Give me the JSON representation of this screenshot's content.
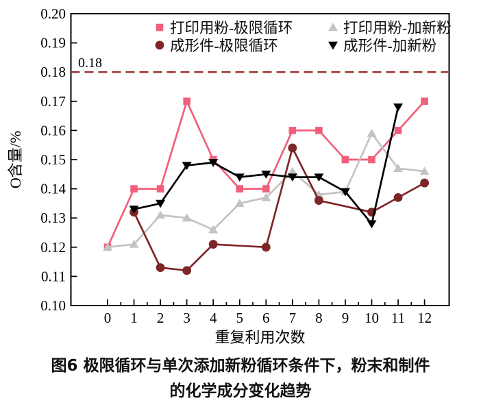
{
  "figure": {
    "caption_line1": "图6  极限循环与单次添加新粉循环条件下，粉末和制件",
    "caption_line2": "的化学成分变化趋势"
  },
  "chart_data": {
    "type": "line",
    "title": "",
    "xlabel": "重复利用次数",
    "ylabel": "O含量/%",
    "xlim": [
      0,
      12
    ],
    "ylim": [
      0.1,
      0.2
    ],
    "x_ticks": [
      "0",
      "1",
      "2",
      "3",
      "4",
      "5",
      "6",
      "7",
      "8",
      "9",
      "10",
      "11",
      "12"
    ],
    "y_ticks": [
      "0.10",
      "0.11",
      "0.12",
      "0.13",
      "0.14",
      "0.15",
      "0.16",
      "0.17",
      "0.18",
      "0.19",
      "0.20"
    ],
    "x_minor_tick_step": 0.5,
    "grid": false,
    "legend_position": "top-center",
    "axis_color": "#000000",
    "threshold": {
      "value": 0.18,
      "label": "0.18",
      "color": "#9a3335",
      "style": "dashed"
    },
    "series": [
      {
        "id": "print-powder-limit-cycle",
        "name": "打印用粉-极限循环",
        "marker": "square",
        "color": "#f15f7b",
        "x": [
          0,
          1,
          2,
          3,
          4,
          5,
          6,
          7,
          8,
          9,
          10,
          11,
          12
        ],
        "y": [
          0.12,
          0.14,
          0.14,
          0.17,
          0.15,
          0.14,
          0.14,
          0.16,
          0.16,
          0.15,
          0.15,
          0.16,
          0.17
        ]
      },
      {
        "id": "print-powder-new-powder",
        "name": "打印用粉-加新粉",
        "marker": "triangle-up",
        "color": "#c4c3c3",
        "x": [
          0,
          1,
          2,
          3,
          4,
          5,
          6,
          7,
          8,
          9,
          10,
          11,
          12
        ],
        "y": [
          0.12,
          0.121,
          0.131,
          0.13,
          0.126,
          0.135,
          0.137,
          0.146,
          0.138,
          0.139,
          0.159,
          0.147,
          0.146
        ]
      },
      {
        "id": "formed-part-limit-cycle",
        "name": "成形件-极限循环",
        "marker": "circle",
        "color": "#7e2527",
        "x": [
          1,
          2,
          3,
          4,
          6,
          7,
          8,
          10,
          11,
          12
        ],
        "y": [
          0.132,
          0.113,
          0.112,
          0.121,
          0.12,
          0.154,
          0.136,
          0.132,
          0.137,
          0.142
        ]
      },
      {
        "id": "formed-part-new-powder",
        "name": "成形件-加新粉",
        "marker": "triangle-down",
        "color": "#000000",
        "x": [
          1,
          2,
          3,
          4,
          5,
          6,
          7,
          8,
          9,
          10,
          11
        ],
        "y": [
          0.133,
          0.135,
          0.148,
          0.149,
          0.144,
          0.145,
          0.144,
          0.144,
          0.139,
          0.128,
          0.168
        ]
      }
    ]
  }
}
